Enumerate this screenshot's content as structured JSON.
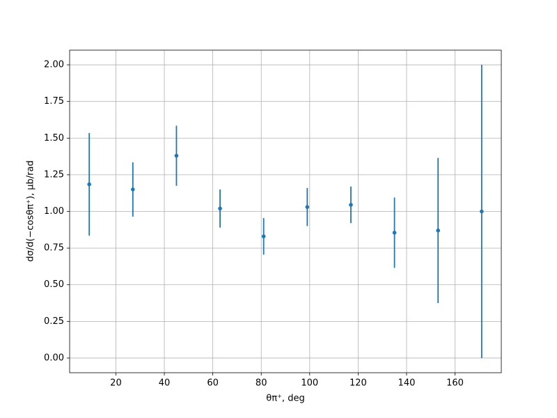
{
  "chart_data": {
    "type": "errorbar",
    "xlabel": "θπ⁺, deg",
    "ylabel": "dσ/d(−cosθπ⁺), μb/rad",
    "x": [
      9,
      27,
      45,
      63,
      81,
      99,
      117,
      135,
      153,
      171
    ],
    "values": [
      1.185,
      1.15,
      1.38,
      1.02,
      0.83,
      1.03,
      1.045,
      0.855,
      0.87,
      1.0
    ],
    "errors": [
      0.35,
      0.185,
      0.205,
      0.13,
      0.125,
      0.13,
      0.125,
      0.24,
      0.495,
      1.0
    ],
    "color": "#1f77b4",
    "xlim": [
      0.9,
      179.1
    ],
    "ylim": [
      -0.1,
      2.1
    ],
    "xticks": [
      20,
      40,
      60,
      80,
      100,
      120,
      140,
      160
    ],
    "yticks": [
      {
        "value": 0,
        "label": "0.00"
      },
      {
        "value": 0.25,
        "label": "0.25"
      },
      {
        "value": 0.5,
        "label": "0.50"
      },
      {
        "value": 0.75,
        "label": "0.75"
      },
      {
        "value": 1,
        "label": "1.00"
      },
      {
        "value": 1.25,
        "label": "1.25"
      },
      {
        "value": 1.5,
        "label": "1.50"
      },
      {
        "value": 1.75,
        "label": "1.75"
      },
      {
        "value": 2,
        "label": "2.00"
      }
    ],
    "grid": true
  }
}
